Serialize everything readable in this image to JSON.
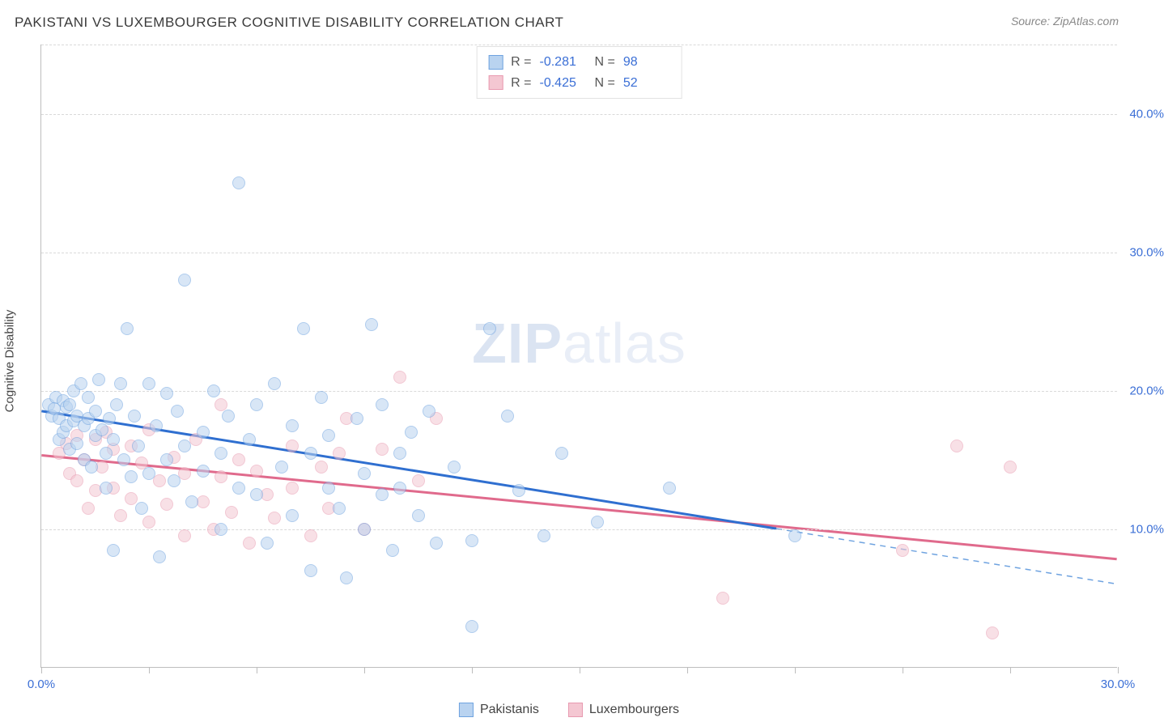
{
  "title": "PAKISTANI VS LUXEMBOURGER COGNITIVE DISABILITY CORRELATION CHART",
  "source_prefix": "Source: ",
  "source_name": "ZipAtlas.com",
  "watermark_bold": "ZIP",
  "watermark_light": "atlas",
  "y_axis_title": "Cognitive Disability",
  "chart": {
    "type": "scatter",
    "xlim": [
      0,
      30
    ],
    "ylim": [
      0,
      45
    ],
    "x_ticks": [
      0,
      3,
      6,
      9,
      12,
      15,
      18,
      21,
      24,
      27,
      30
    ],
    "x_tick_labels": {
      "0": "0.0%",
      "30": "30.0%"
    },
    "y_ticks": [
      10,
      20,
      30,
      40
    ],
    "y_tick_labels": {
      "10": "10.0%",
      "20": "20.0%",
      "30": "30.0%",
      "40": "40.0%"
    },
    "background_color": "#ffffff",
    "grid_color": "#d9d9d9",
    "axis_color": "#bdbdbd",
    "marker_radius": 8,
    "marker_border_width": 1.2,
    "series": {
      "pakistanis": {
        "label": "Pakistanis",
        "fill": "#b9d3f0",
        "stroke": "#6fa3e0",
        "fill_opacity": 0.55,
        "line_color": "#2f6fd0",
        "line_width": 3,
        "dash_color": "#6fa3e0",
        "R_label": "R =",
        "R": "-0.281",
        "N_label": "N =",
        "N": "98",
        "trend": {
          "x1": 0,
          "y1": 18.5,
          "x2": 20.5,
          "y2": 10.0
        },
        "dash": {
          "x1": 20.5,
          "y1": 10.0,
          "x2": 30,
          "y2": 6.0
        },
        "points": [
          [
            0.2,
            19.0
          ],
          [
            0.3,
            18.2
          ],
          [
            0.4,
            19.5
          ],
          [
            0.35,
            18.7
          ],
          [
            0.5,
            18.0
          ],
          [
            0.5,
            16.5
          ],
          [
            0.6,
            19.3
          ],
          [
            0.6,
            17.0
          ],
          [
            0.7,
            18.8
          ],
          [
            0.7,
            17.5
          ],
          [
            0.8,
            19.0
          ],
          [
            0.8,
            15.8
          ],
          [
            0.9,
            17.8
          ],
          [
            0.9,
            20.0
          ],
          [
            1.0,
            18.2
          ],
          [
            1.0,
            16.2
          ],
          [
            1.1,
            20.5
          ],
          [
            1.2,
            17.5
          ],
          [
            1.2,
            15.0
          ],
          [
            1.3,
            18.0
          ],
          [
            1.3,
            19.5
          ],
          [
            1.4,
            14.5
          ],
          [
            1.5,
            16.8
          ],
          [
            1.5,
            18.5
          ],
          [
            1.6,
            20.8
          ],
          [
            1.7,
            17.2
          ],
          [
            1.8,
            15.5
          ],
          [
            1.8,
            13.0
          ],
          [
            1.9,
            18.0
          ],
          [
            2.0,
            16.5
          ],
          [
            2.0,
            8.5
          ],
          [
            2.1,
            19.0
          ],
          [
            2.2,
            20.5
          ],
          [
            2.3,
            15.0
          ],
          [
            2.4,
            24.5
          ],
          [
            2.5,
            13.8
          ],
          [
            2.6,
            18.2
          ],
          [
            2.7,
            16.0
          ],
          [
            2.8,
            11.5
          ],
          [
            3.0,
            20.5
          ],
          [
            3.0,
            14.0
          ],
          [
            3.2,
            17.5
          ],
          [
            3.3,
            8.0
          ],
          [
            3.5,
            15.0
          ],
          [
            3.5,
            19.8
          ],
          [
            3.7,
            13.5
          ],
          [
            3.8,
            18.5
          ],
          [
            4.0,
            16.0
          ],
          [
            4.0,
            28.0
          ],
          [
            4.2,
            12.0
          ],
          [
            4.5,
            17.0
          ],
          [
            4.5,
            14.2
          ],
          [
            4.8,
            20.0
          ],
          [
            5.0,
            15.5
          ],
          [
            5.0,
            10.0
          ],
          [
            5.2,
            18.2
          ],
          [
            5.5,
            35.0
          ],
          [
            5.5,
            13.0
          ],
          [
            5.8,
            16.5
          ],
          [
            6.0,
            12.5
          ],
          [
            6.0,
            19.0
          ],
          [
            6.3,
            9.0
          ],
          [
            6.5,
            20.5
          ],
          [
            6.7,
            14.5
          ],
          [
            7.0,
            17.5
          ],
          [
            7.0,
            11.0
          ],
          [
            7.3,
            24.5
          ],
          [
            7.5,
            15.5
          ],
          [
            7.5,
            7.0
          ],
          [
            7.8,
            19.5
          ],
          [
            8.0,
            13.0
          ],
          [
            8.0,
            16.8
          ],
          [
            8.3,
            11.5
          ],
          [
            8.5,
            6.5
          ],
          [
            8.8,
            18.0
          ],
          [
            9.0,
            14.0
          ],
          [
            9.0,
            10.0
          ],
          [
            9.2,
            24.8
          ],
          [
            9.5,
            12.5
          ],
          [
            9.5,
            19.0
          ],
          [
            9.8,
            8.5
          ],
          [
            10.0,
            15.5
          ],
          [
            10.0,
            13.0
          ],
          [
            10.3,
            17.0
          ],
          [
            10.5,
            11.0
          ],
          [
            10.8,
            18.5
          ],
          [
            11.0,
            9.0
          ],
          [
            11.5,
            14.5
          ],
          [
            12.0,
            9.2
          ],
          [
            12.0,
            3.0
          ],
          [
            12.5,
            24.5
          ],
          [
            13.0,
            18.2
          ],
          [
            13.3,
            12.8
          ],
          [
            14.0,
            9.5
          ],
          [
            14.5,
            15.5
          ],
          [
            15.5,
            10.5
          ],
          [
            17.5,
            13.0
          ],
          [
            21.0,
            9.5
          ]
        ]
      },
      "luxembourgers": {
        "label": "Luxembourgers",
        "fill": "#f4c7d2",
        "stroke": "#e89ab0",
        "fill_opacity": 0.55,
        "line_color": "#e06a8c",
        "line_width": 3,
        "R_label": "R =",
        "R": "-0.425",
        "N_label": "N =",
        "N": "52",
        "trend": {
          "x1": 0,
          "y1": 15.3,
          "x2": 30,
          "y2": 7.8
        },
        "points": [
          [
            0.5,
            15.5
          ],
          [
            0.7,
            16.2
          ],
          [
            0.8,
            14.0
          ],
          [
            1.0,
            16.8
          ],
          [
            1.0,
            13.5
          ],
          [
            1.2,
            15.0
          ],
          [
            1.3,
            11.5
          ],
          [
            1.5,
            16.5
          ],
          [
            1.5,
            12.8
          ],
          [
            1.7,
            14.5
          ],
          [
            1.8,
            17.0
          ],
          [
            2.0,
            13.0
          ],
          [
            2.0,
            15.8
          ],
          [
            2.2,
            11.0
          ],
          [
            2.5,
            16.0
          ],
          [
            2.5,
            12.2
          ],
          [
            2.8,
            14.8
          ],
          [
            3.0,
            10.5
          ],
          [
            3.0,
            17.2
          ],
          [
            3.3,
            13.5
          ],
          [
            3.5,
            11.8
          ],
          [
            3.7,
            15.2
          ],
          [
            4.0,
            9.5
          ],
          [
            4.0,
            14.0
          ],
          [
            4.3,
            16.5
          ],
          [
            4.5,
            12.0
          ],
          [
            4.8,
            10.0
          ],
          [
            5.0,
            13.8
          ],
          [
            5.0,
            19.0
          ],
          [
            5.3,
            11.2
          ],
          [
            5.5,
            15.0
          ],
          [
            5.8,
            9.0
          ],
          [
            6.0,
            14.2
          ],
          [
            6.3,
            12.5
          ],
          [
            6.5,
            10.8
          ],
          [
            7.0,
            13.0
          ],
          [
            7.0,
            16.0
          ],
          [
            7.5,
            9.5
          ],
          [
            7.8,
            14.5
          ],
          [
            8.0,
            11.5
          ],
          [
            8.3,
            15.5
          ],
          [
            8.5,
            18.0
          ],
          [
            9.0,
            10.0
          ],
          [
            9.5,
            15.8
          ],
          [
            10.0,
            21.0
          ],
          [
            10.5,
            13.5
          ],
          [
            11.0,
            18.0
          ],
          [
            19.0,
            5.0
          ],
          [
            24.0,
            8.5
          ],
          [
            25.5,
            16.0
          ],
          [
            26.5,
            2.5
          ],
          [
            27.0,
            14.5
          ]
        ]
      }
    }
  }
}
